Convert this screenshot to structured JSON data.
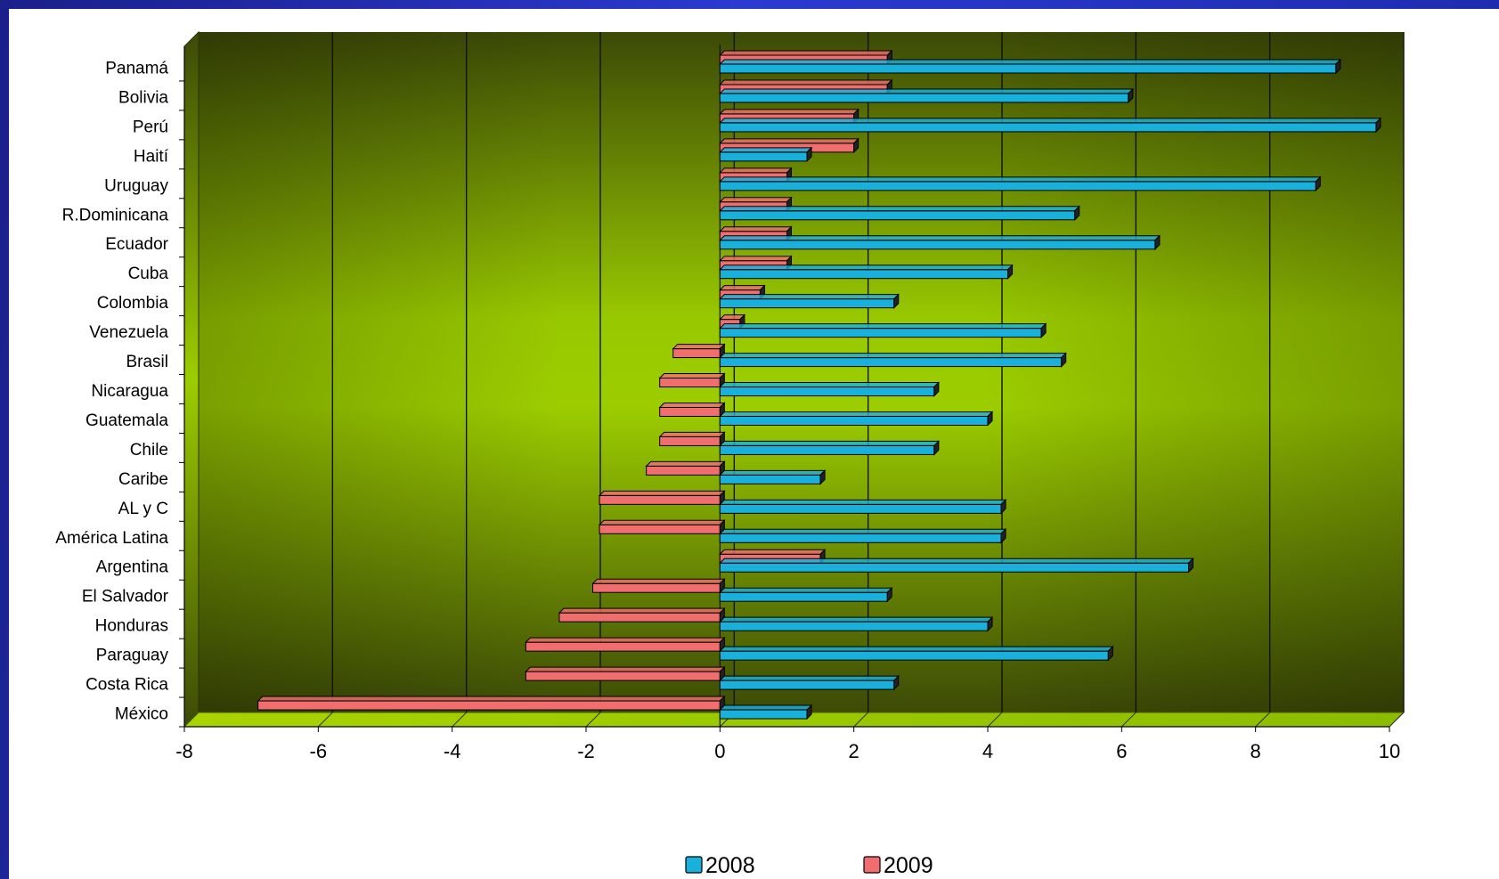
{
  "chart_data": {
    "type": "bar",
    "orientation": "horizontal",
    "style": "3d",
    "categories": [
      "Panamá",
      "Bolivia",
      "Perú",
      "Haití",
      "Uruguay",
      "R.Dominicana",
      "Ecuador",
      "Cuba",
      "Colombia",
      "Venezuela",
      "Brasil",
      "Nicaragua",
      "Guatemala",
      "Chile",
      "Caribe",
      "AL y C",
      "América Latina",
      "Argentina",
      "El Salvador",
      "Honduras",
      "Paraguay",
      "Costa Rica",
      "México"
    ],
    "category_labels": [
      "Panamá",
      "Bolivia",
      "Perú",
      "Haití",
      "Uruguay",
      "R.Dominicana",
      "Ecuador",
      "Cuba",
      "Colombia",
      "Venezuela",
      "Brasil",
      "Nicaragua",
      "Guatemala",
      "Chile",
      "Caribe",
      "AL y C",
      "América Latina",
      "Argentina",
      "El Salvador",
      "Honduras",
      "Paraguay",
      "Costa Rica",
      "México"
    ],
    "series": [
      {
        "name": "2008",
        "color": "#1ab0dc",
        "values": [
          9.2,
          6.1,
          9.8,
          1.3,
          8.9,
          5.3,
          6.5,
          4.3,
          2.6,
          4.8,
          5.1,
          3.2,
          4.0,
          3.2,
          1.5,
          4.2,
          4.2,
          7.0,
          2.5,
          4.0,
          5.8,
          2.6,
          1.3
        ]
      },
      {
        "name": "2009",
        "color": "#f06e6e",
        "values": [
          2.5,
          2.5,
          2.0,
          2.0,
          1.0,
          1.0,
          1.0,
          1.0,
          0.6,
          0.3,
          -0.7,
          -0.9,
          -0.9,
          -0.9,
          -1.1,
          -1.8,
          -1.8,
          1.5,
          -1.9,
          -2.4,
          -2.9,
          -2.9,
          -6.9
        ]
      }
    ],
    "xlim": [
      -8,
      10
    ],
    "xticks": [
      -8,
      -6,
      -4,
      -2,
      0,
      2,
      4,
      6,
      8,
      10
    ],
    "grid": "vertical",
    "legend_position": "bottom-center",
    "plot_background": "olive-green gradient"
  }
}
